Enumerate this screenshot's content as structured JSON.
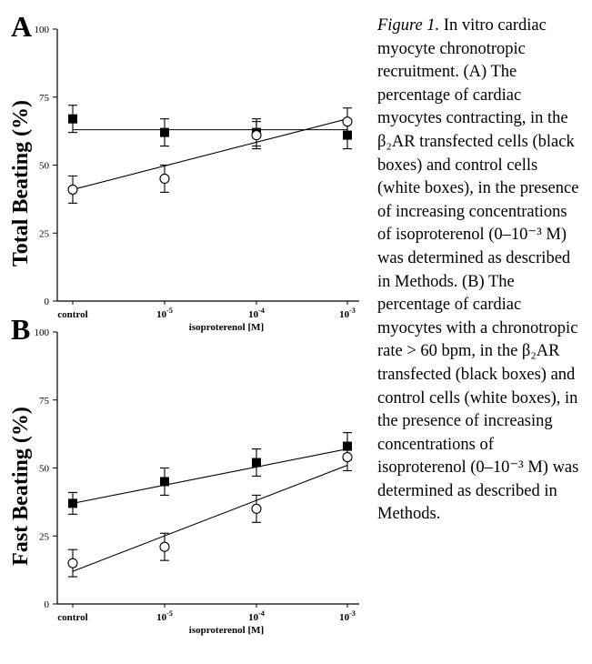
{
  "caption": {
    "label": "Figure 1.",
    "text": "In vitro cardiac myocyte chronotropic recruitment. (A) The percentage of cardiac myocytes contracting, in the β₂AR transfected cells (black boxes) and control cells (white boxes), in the presence of increasing concentrations of isoproterenol (0–10⁻³ M) was determined as described in Methods. (B) The percentage of cardiac myocytes with a chronotropic rate > 60 bpm, in the β₂AR transfected (black boxes) and control cells (white boxes), in the presence of increasing concentrations of isoproterenol (0–10⁻³ M) was determined as described in Methods."
  },
  "chart_data": [
    {
      "type": "scatter",
      "panel_label": "A",
      "ylabel": "Total Beating (%)",
      "xlabel": "isoproterenol [M]",
      "categories": [
        "control",
        "10-5",
        "10-4",
        "10-3"
      ],
      "yticks": [
        0,
        25,
        50,
        75,
        100
      ],
      "ylim": [
        0,
        100
      ],
      "marker_colors": {
        "filled": "#000000",
        "open": "#ffffff"
      },
      "series": [
        {
          "marker": "filled-square",
          "values": [
            67,
            62,
            62,
            61
          ],
          "errors": [
            5,
            5,
            5,
            5
          ],
          "fit": [
            63,
            63
          ]
        },
        {
          "marker": "open-circle",
          "values": [
            41,
            45,
            61,
            66
          ],
          "errors": [
            5,
            5,
            5,
            5
          ],
          "fit": [
            41,
            67
          ]
        }
      ]
    },
    {
      "type": "scatter",
      "panel_label": "B",
      "ylabel": "Fast Beating (%)",
      "xlabel": "isoproterenol [M]",
      "categories": [
        "control",
        "10-5",
        "10-4",
        "10-3"
      ],
      "yticks": [
        0,
        25,
        50,
        75,
        100
      ],
      "ylim": [
        0,
        100
      ],
      "marker_colors": {
        "filled": "#000000",
        "open": "#ffffff"
      },
      "series": [
        {
          "marker": "filled-square",
          "values": [
            37,
            45,
            52,
            58
          ],
          "errors": [
            4,
            5,
            5,
            5
          ],
          "fit": [
            37,
            57
          ]
        },
        {
          "marker": "open-circle",
          "values": [
            15,
            21,
            35,
            54
          ],
          "errors": [
            5,
            5,
            5,
            5
          ],
          "fit": [
            12,
            51
          ]
        }
      ]
    }
  ]
}
